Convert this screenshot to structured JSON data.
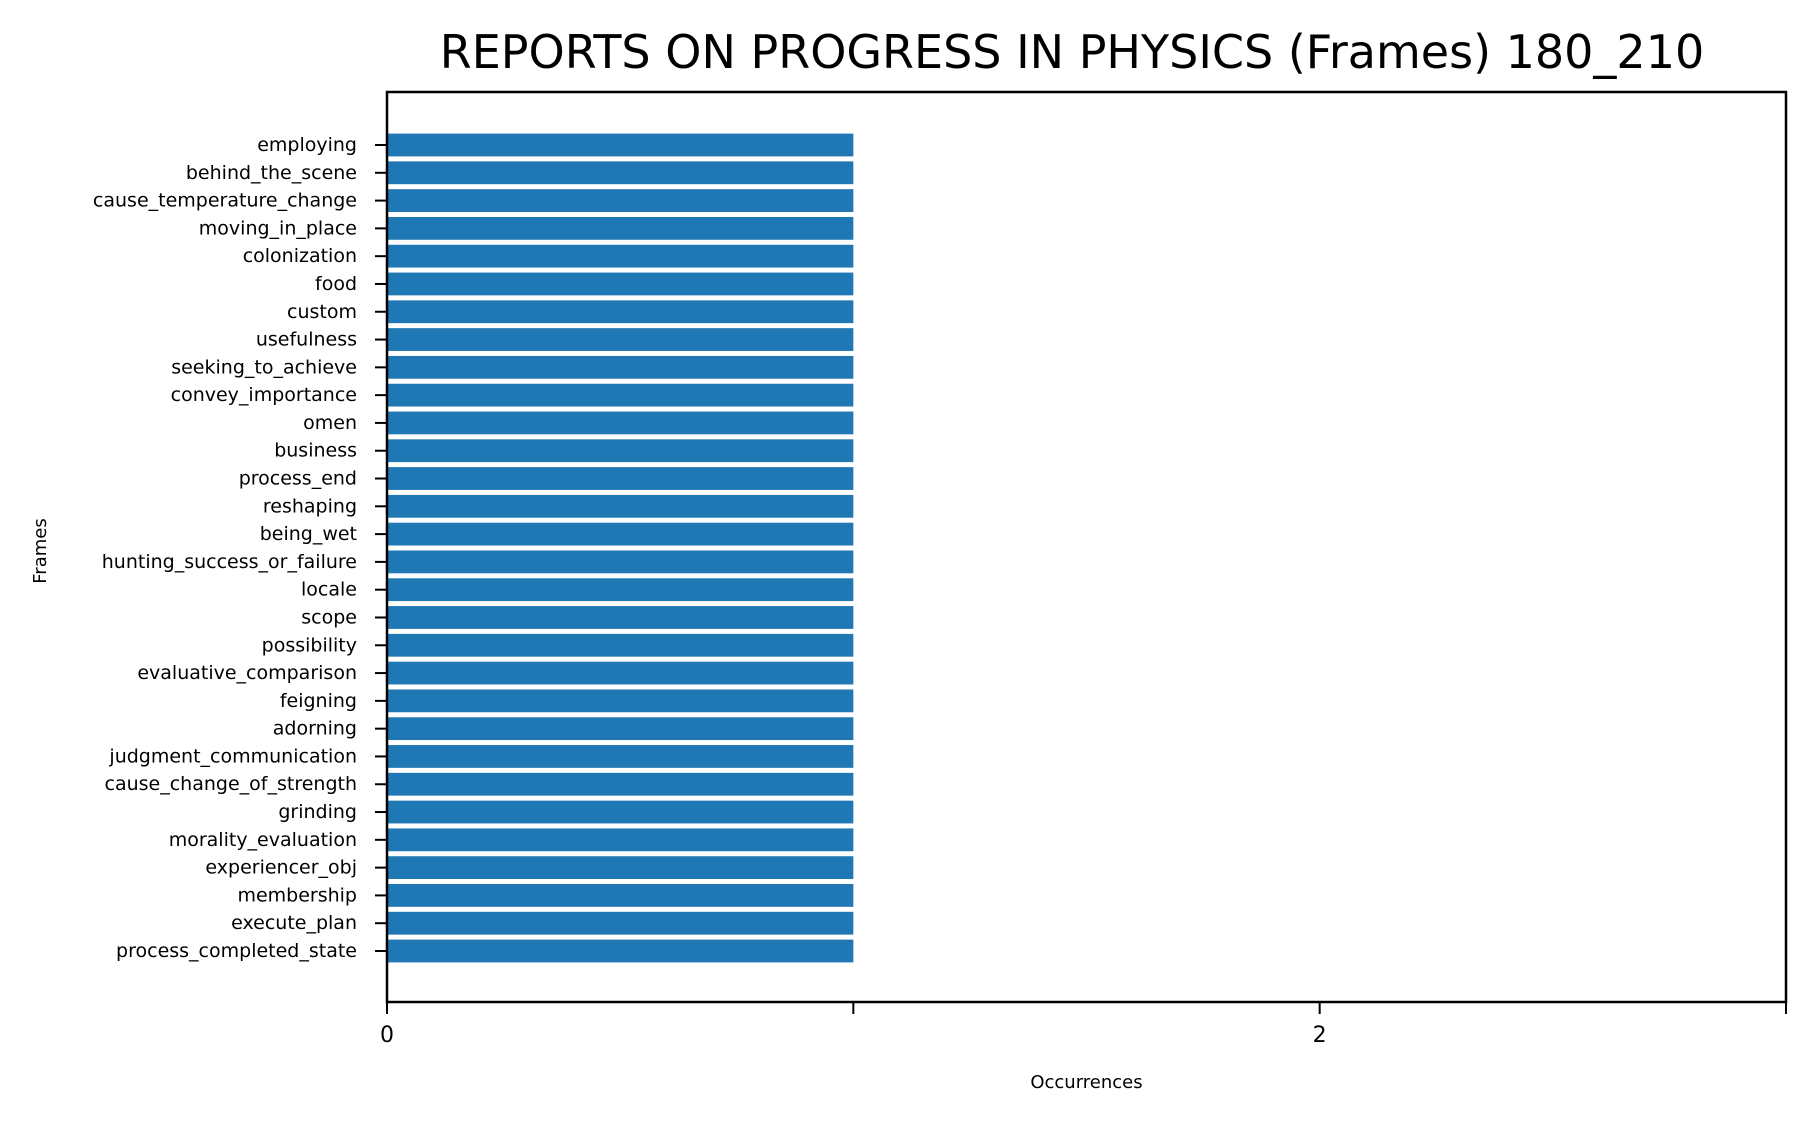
{
  "chart_data": {
    "type": "bar",
    "orientation": "horizontal",
    "title": "REPORTS ON PROGRESS IN PHYSICS (Frames) 180_210",
    "xlabel": "Occurrences",
    "ylabel": "Frames",
    "xlim": [
      0,
      3
    ],
    "x_ticks": [
      0,
      1,
      2,
      3
    ],
    "x_tick_labels": [
      "0",
      "",
      "2",
      ""
    ],
    "grid": false,
    "legend": "none",
    "bar_color": "#1f77b4",
    "categories": [
      "employing",
      "behind_the_scene",
      "cause_temperature_change",
      "moving_in_place",
      "colonization",
      "food",
      "custom",
      "usefulness",
      "seeking_to_achieve",
      "convey_importance",
      "omen",
      "business",
      "process_end",
      "reshaping",
      "being_wet",
      "hunting_success_or_failure",
      "locale",
      "scope",
      "possibility",
      "evaluative_comparison",
      "feigning",
      "adorning",
      "judgment_communication",
      "cause_change_of_strength",
      "grinding",
      "morality_evaluation",
      "experiencer_obj",
      "membership",
      "execute_plan",
      "process_completed_state"
    ],
    "values": [
      1,
      1,
      1,
      1,
      1,
      1,
      1,
      1,
      1,
      1,
      1,
      1,
      1,
      1,
      1,
      1,
      1,
      1,
      1,
      1,
      1,
      1,
      1,
      1,
      1,
      1,
      1,
      1,
      1,
      1
    ]
  }
}
